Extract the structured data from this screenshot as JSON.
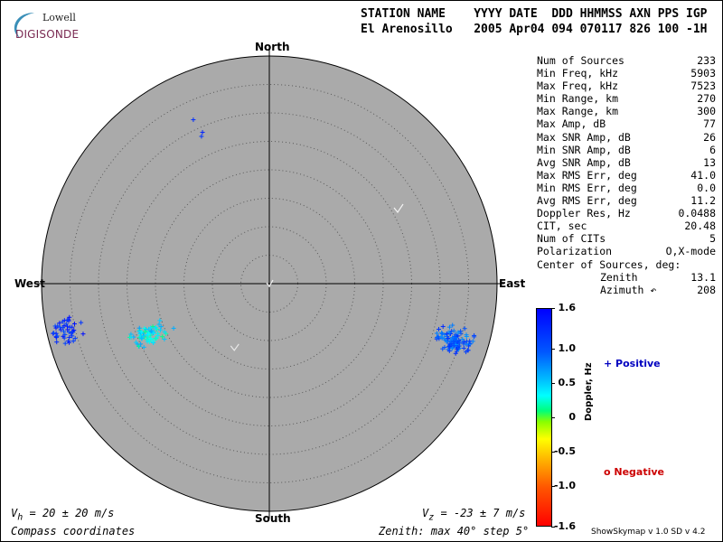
{
  "logo": {
    "line1": "Lowell",
    "line2": "DIGISONDE"
  },
  "header": {
    "line1": "STATION NAME    YYYY DATE  DDD HHMMSS AXN PPS IGP",
    "line2": "El Arenosillo   2005 Apr04 094 070117 826 100 -1H"
  },
  "stats": [
    {
      "label": "Num of Sources",
      "value": "233"
    },
    {
      "label": "Min Freq, kHz",
      "value": "5903"
    },
    {
      "label": "Max Freq, kHz",
      "value": "7523"
    },
    {
      "label": "Min Range, km",
      "value": "270"
    },
    {
      "label": "Max Range, km",
      "value": "300"
    },
    {
      "label": "Max Amp, dB",
      "value": "77"
    },
    {
      "label": "Max SNR Amp, dB",
      "value": "26"
    },
    {
      "label": "Min SNR Amp, dB",
      "value": "6"
    },
    {
      "label": "Avg SNR Amp, dB",
      "value": "13"
    },
    {
      "label": "Max RMS Err, deg",
      "value": "41.0"
    },
    {
      "label": "Min RMS Err, deg",
      "value": "0.0"
    },
    {
      "label": "Avg RMS Err, deg",
      "value": "11.2"
    },
    {
      "label": "Doppler Res, Hz",
      "value": "0.0488"
    },
    {
      "label": "CIT, sec",
      "value": "20.48"
    },
    {
      "label": "Num of CITs",
      "value": "5"
    },
    {
      "label": "Polarization",
      "value": "O,X-mode"
    },
    {
      "label": "Center of Sources, deg:",
      "value": ""
    },
    {
      "label": "Zenith",
      "value": "13.1",
      "indent": true
    },
    {
      "label": "Azimuth ↶",
      "value": "208",
      "indent": true
    }
  ],
  "compass": {
    "north": "North",
    "south": "South",
    "west": "West",
    "east": "East"
  },
  "colorbar": {
    "label": "Doppler, Hz",
    "ticks": [
      "1.6",
      "1.0",
      "0.5",
      "0",
      "-0.5",
      "-1.0",
      "-1.6"
    ],
    "tick_values": [
      1.6,
      1.0,
      0.5,
      0,
      -0.5,
      -1.0,
      -1.6
    ]
  },
  "legend": {
    "positive": "+ Positive",
    "negative": "o Negative"
  },
  "footer": {
    "vh_prefix": "V",
    "vh_sub": "h",
    "vh_rest": " = 20 ± 20 m/s",
    "vz_prefix": "V",
    "vz_sub": "z",
    "vz_rest": " = -23 ± 7 m/s",
    "coords": "Compass coordinates",
    "zenith": "Zenith: max 40°  step 5°",
    "version": "ShowSkymap v 1.0   SD v 4.2"
  },
  "chart_data": {
    "type": "scatter",
    "projection": "polar sky map, compass coordinates",
    "zenith_max_deg": 40,
    "zenith_step_deg": 5,
    "background_color": "#aaaaaa",
    "marker": "+",
    "clusters": [
      {
        "region": "northwest",
        "zenith_deg": [
          28,
          35
        ],
        "azimuth_deg": [
          332,
          338
        ],
        "doppler_hz": [
          1.1,
          1.4
        ],
        "count": 3
      },
      {
        "region": "west",
        "zenith_deg": [
          33,
          40
        ],
        "azimuth_deg": [
          252,
          262
        ],
        "doppler_hz": [
          1.0,
          1.5
        ],
        "count": 45
      },
      {
        "region": "west-southwest",
        "zenith_deg": [
          19,
          27
        ],
        "azimuth_deg": [
          242,
          252
        ],
        "doppler_hz": [
          0.1,
          0.7
        ],
        "count": 70
      },
      {
        "region": "east-southeast",
        "zenith_deg": [
          30,
          38
        ],
        "azimuth_deg": [
          103,
          112
        ],
        "doppler_hz": [
          0.7,
          1.3
        ],
        "count": 115
      }
    ],
    "center_of_sources": {
      "zenith_deg": 13.1,
      "azimuth_deg": 208
    }
  }
}
